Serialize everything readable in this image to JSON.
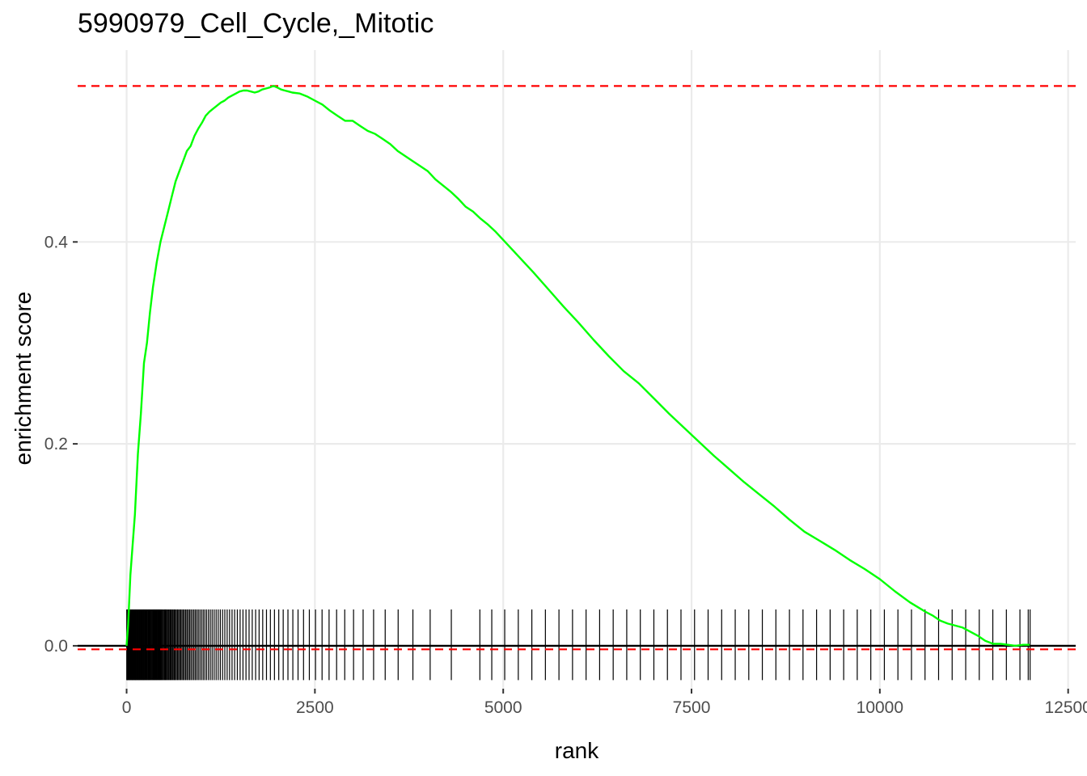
{
  "chart_data": {
    "type": "line",
    "title": "5990979_Cell_Cycle,_Mitotic",
    "xlabel": "rank",
    "ylabel": "enrichment score",
    "xlim": [
      -650,
      12600
    ],
    "ylim": [
      -0.0425,
      0.59
    ],
    "x_ticks": [
      0,
      2500,
      5000,
      7500,
      10000,
      12500
    ],
    "x_tick_labels": [
      "0",
      "2500",
      "5000",
      "7500",
      "10000",
      "12500"
    ],
    "y_ticks": [
      0.0,
      0.2,
      0.4
    ],
    "y_tick_labels": [
      "0.0",
      "0.2",
      "0.4"
    ],
    "grid": true,
    "legend": "none",
    "colors": {
      "curve": "#00ff00",
      "threshold": "#ff0000",
      "baseline": "#000000",
      "hits": "#000000",
      "grid": "#ebebeb"
    },
    "reference_lines": {
      "max_es": 0.5545,
      "min_es": -0.0035,
      "baseline": 0.0
    },
    "hit_band": [
      -0.034,
      0.036
    ],
    "series": [
      {
        "x": [
          0,
          20,
          50,
          80,
          110,
          150,
          190,
          230,
          270,
          310,
          350,
          400,
          450,
          500,
          550,
          600,
          650,
          700,
          750,
          800,
          850,
          900,
          950,
          1000,
          1050,
          1100,
          1150,
          1200,
          1250,
          1300,
          1350,
          1400,
          1450,
          1500,
          1550,
          1600,
          1650,
          1700,
          1750,
          1800,
          1850,
          1900,
          1950,
          2000,
          2050,
          2100,
          2150,
          2200,
          2300,
          2400,
          2500,
          2600,
          2700,
          2800,
          2900,
          3000,
          3100,
          3200,
          3300,
          3400,
          3500,
          3600,
          3700,
          3800,
          3900,
          4000,
          4100,
          4200,
          4300,
          4400,
          4500,
          4600,
          4700,
          4800,
          4900,
          5000,
          5200,
          5400,
          5600,
          5800,
          6000,
          6200,
          6400,
          6600,
          6800,
          7000,
          7200,
          7400,
          7600,
          7800,
          8000,
          8200,
          8400,
          8600,
          8800,
          9000,
          9200,
          9400,
          9600,
          9800,
          10000,
          10200,
          10400,
          10600,
          10700,
          10800,
          10900,
          11000,
          11100,
          11200,
          11300,
          11400,
          11500,
          11600,
          11700,
          11800,
          11900,
          11990
        ],
        "values": [
          0.0,
          0.02,
          0.07,
          0.1,
          0.13,
          0.19,
          0.23,
          0.28,
          0.3,
          0.33,
          0.355,
          0.38,
          0.4,
          0.415,
          0.43,
          0.445,
          0.46,
          0.47,
          0.48,
          0.49,
          0.495,
          0.505,
          0.512,
          0.518,
          0.525,
          0.529,
          0.532,
          0.535,
          0.538,
          0.54,
          0.543,
          0.545,
          0.547,
          0.549,
          0.55,
          0.55,
          0.549,
          0.548,
          0.549,
          0.551,
          0.552,
          0.553,
          0.5545,
          0.553,
          0.551,
          0.55,
          0.549,
          0.548,
          0.547,
          0.544,
          0.54,
          0.536,
          0.53,
          0.525,
          0.52,
          0.52,
          0.515,
          0.51,
          0.507,
          0.502,
          0.497,
          0.49,
          0.485,
          0.48,
          0.475,
          0.47,
          0.462,
          0.456,
          0.45,
          0.443,
          0.435,
          0.43,
          0.423,
          0.417,
          0.41,
          0.402,
          0.386,
          0.37,
          0.353,
          0.336,
          0.32,
          0.303,
          0.287,
          0.272,
          0.26,
          0.245,
          0.23,
          0.216,
          0.202,
          0.188,
          0.175,
          0.162,
          0.15,
          0.138,
          0.125,
          0.113,
          0.104,
          0.095,
          0.085,
          0.076,
          0.066,
          0.054,
          0.043,
          0.034,
          0.03,
          0.025,
          0.022,
          0.02,
          0.018,
          0.014,
          0.01,
          0.005,
          0.002,
          0.002,
          0.001,
          0.0,
          0.001,
          0.001
        ]
      }
    ],
    "hits": [
      2,
      9,
      16,
      24,
      33,
      41,
      50,
      58,
      67,
      75,
      84,
      92,
      101,
      110,
      118,
      127,
      136,
      145,
      153,
      162,
      171,
      180,
      189,
      198,
      207,
      216,
      225,
      234,
      243,
      253,
      262,
      271,
      281,
      290,
      300,
      310,
      320,
      330,
      340,
      350,
      360,
      370,
      380,
      391,
      401,
      412,
      423,
      434,
      445,
      456,
      468,
      479,
      491,
      503,
      515,
      527,
      540,
      552,
      565,
      578,
      591,
      605,
      618,
      632,
      646,
      660,
      675,
      690,
      705,
      720,
      736,
      752,
      768,
      785,
      802,
      819,
      837,
      855,
      874,
      893,
      912,
      932,
      952,
      973,
      995,
      1017,
      1039,
      1062,
      1086,
      1111,
      1136,
      1162,
      1189,
      1216,
      1244,
      1274,
      1304,
      1335,
      1367,
      1400,
      1434,
      1470,
      1507,
      1545,
      1585,
      1626,
      1668,
      1713,
      1759,
      1807,
      1857,
      1909,
      1963,
      2020,
      2079,
      2142,
      2207,
      2276,
      2349,
      2426,
      2508,
      2595,
      2688,
      2788,
      2896,
      3013,
      3140,
      3279,
      3433,
      3605,
      3801,
      4030,
      4311,
      4690,
      4848,
      5020,
      5200,
      5380,
      5560,
      5740,
      5920,
      6100,
      6280,
      6460,
      6640,
      6820,
      7000,
      7180,
      7360,
      7540,
      7720,
      7900,
      8080,
      8260,
      8440,
      8620,
      8800,
      8980,
      9160,
      9340,
      9520,
      9700,
      9880,
      10060,
      10240,
      10420,
      10600,
      10780,
      10960,
      11140,
      11320,
      11500,
      11680,
      11860,
      11970,
      11995
    ]
  }
}
